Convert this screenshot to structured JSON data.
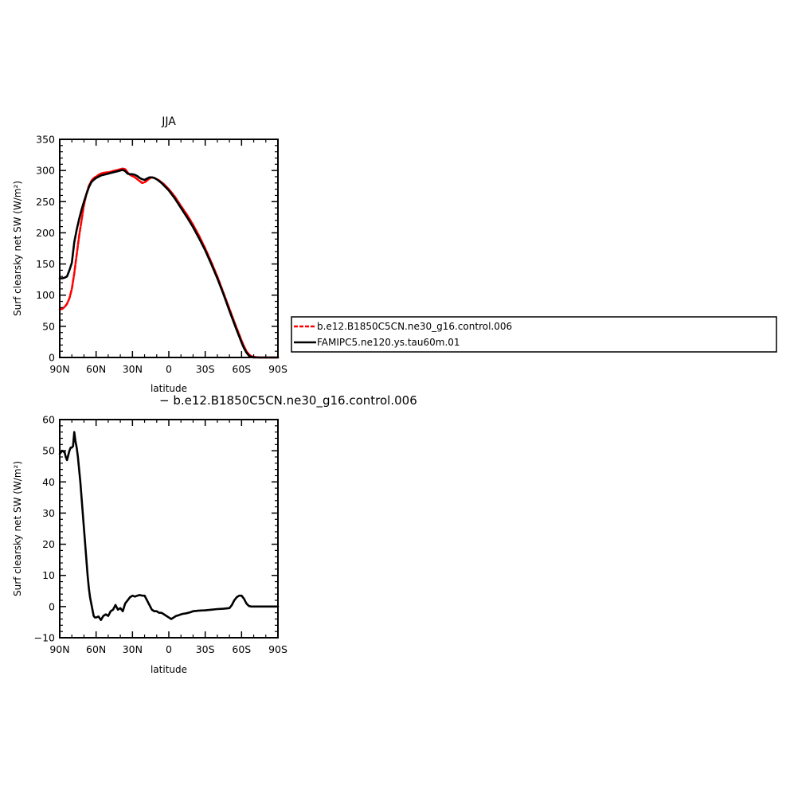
{
  "chart_data": [
    {
      "type": "line",
      "title": "JJA",
      "xlabel": "latitude",
      "ylabel": "Surf clearsky net SW (W/m²)",
      "xlim": [
        90,
        -90
      ],
      "ylim": [
        0,
        350
      ],
      "x_ticks": [
        90,
        60,
        30,
        0,
        -30,
        -60,
        -90
      ],
      "x_tick_labels": [
        "90N",
        "60N",
        "30N",
        "0",
        "30S",
        "60S",
        "90S"
      ],
      "y_ticks": [
        0,
        50,
        100,
        150,
        200,
        250,
        300,
        350
      ],
      "y_tick_labels": [
        "0",
        "50",
        "100",
        "150",
        "200",
        "250",
        "300",
        "350"
      ],
      "grid": false,
      "legend_placement": "right",
      "series": [
        {
          "name": "b.e12.B1850C5CN.ne30_g16.control.006",
          "color": "#ff0000",
          "style": "dashed",
          "x": [
            90,
            88,
            86,
            84,
            82,
            80,
            78,
            76,
            74,
            72,
            70,
            68,
            66,
            64,
            62,
            60,
            58,
            56,
            54,
            52,
            50,
            48,
            46,
            44,
            42,
            40,
            38,
            36,
            34,
            32,
            30,
            28,
            26,
            24,
            22,
            20,
            18,
            16,
            14,
            12,
            10,
            8,
            6,
            4,
            2,
            0,
            -5,
            -10,
            -15,
            -20,
            -25,
            -30,
            -35,
            -40,
            -45,
            -50,
            -55,
            -60,
            -62,
            -64,
            -66,
            -68,
            -70,
            -75,
            -80,
            -85,
            -90
          ],
          "values": [
            77,
            78,
            81,
            86,
            95,
            110,
            135,
            165,
            195,
            220,
            245,
            262,
            275,
            283,
            288,
            290,
            293,
            295,
            296,
            297,
            297,
            298,
            299,
            300,
            301,
            302,
            303,
            302,
            297,
            293,
            291,
            289,
            286,
            283,
            280,
            281,
            284,
            287,
            289,
            288,
            286,
            284,
            281,
            278,
            274,
            270,
            258,
            243,
            229,
            213,
            195,
            175,
            153,
            130,
            104,
            78,
            52,
            27,
            18,
            10,
            5,
            2,
            1,
            0,
            0,
            0,
            0
          ]
        },
        {
          "name": "FAMIPC5.ne120.ys.tau60m.01",
          "color": "#000000",
          "style": "solid",
          "x": [
            90,
            88,
            86,
            84,
            82,
            80,
            78,
            76,
            74,
            72,
            70,
            68,
            66,
            64,
            62,
            60,
            58,
            56,
            54,
            52,
            50,
            48,
            46,
            44,
            42,
            40,
            38,
            36,
            34,
            32,
            30,
            28,
            26,
            24,
            22,
            20,
            18,
            16,
            14,
            12,
            10,
            8,
            6,
            4,
            2,
            0,
            -5,
            -10,
            -15,
            -20,
            -25,
            -30,
            -35,
            -40,
            -45,
            -50,
            -55,
            -60,
            -62,
            -64,
            -66,
            -68,
            -70,
            -75,
            -80,
            -85,
            -90
          ],
          "values": [
            127,
            127,
            128,
            130,
            140,
            152,
            185,
            205,
            222,
            237,
            250,
            262,
            273,
            281,
            285,
            288,
            290,
            292,
            293,
            294,
            295,
            296,
            297,
            298,
            299,
            300,
            301,
            299,
            295,
            294,
            294,
            293,
            291,
            288,
            286,
            285,
            287,
            289,
            289,
            288,
            286,
            283,
            280,
            276,
            272,
            268,
            255,
            240,
            225,
            209,
            191,
            172,
            150,
            127,
            102,
            75,
            49,
            24,
            15,
            8,
            3,
            1,
            0,
            0,
            0,
            0,
            0
          ]
        }
      ]
    },
    {
      "type": "line",
      "title": "− b.e12.B1850C5CN.ne30_g16.control.006",
      "xlabel": "latitude",
      "ylabel": "Surf clearsky net SW (W/m²)",
      "xlim": [
        90,
        -90
      ],
      "ylim": [
        -10,
        60
      ],
      "x_ticks": [
        90,
        60,
        30,
        0,
        -30,
        -60,
        -90
      ],
      "x_tick_labels": [
        "90N",
        "60N",
        "30N",
        "0",
        "30S",
        "60S",
        "90S"
      ],
      "y_ticks": [
        -10,
        0,
        10,
        20,
        30,
        40,
        50,
        60
      ],
      "y_tick_labels": [
        "−10",
        "0",
        "10",
        "20",
        "30",
        "40",
        "50",
        "60"
      ],
      "grid": false,
      "series": [
        {
          "color": "#000000",
          "style": "solid",
          "x": [
            90,
            88,
            86,
            85,
            84,
            83,
            82,
            81,
            80,
            79,
            78,
            77,
            76,
            75,
            74,
            73,
            72,
            71,
            70,
            69,
            68,
            67,
            66,
            65,
            64,
            63,
            62,
            61,
            60,
            58,
            56,
            54,
            52,
            50,
            48,
            46,
            44,
            42,
            40,
            38,
            36,
            34,
            32,
            30,
            28,
            26,
            24,
            22,
            20,
            18,
            16,
            14,
            12,
            10,
            8,
            6,
            4,
            2,
            0,
            -2,
            -4,
            -6,
            -8,
            -10,
            -12,
            -14,
            -16,
            -18,
            -20,
            -25,
            -30,
            -35,
            -40,
            -45,
            -50,
            -52,
            -54,
            -56,
            -58,
            -60,
            -62,
            -64,
            -66,
            -68,
            -70,
            -75,
            -80,
            -85,
            -90
          ],
          "values": [
            49,
            50,
            49.5,
            48,
            47,
            48.5,
            50,
            51,
            51,
            51.5,
            56,
            53,
            51,
            48,
            44,
            40,
            35,
            30,
            25,
            20,
            15,
            10,
            6,
            3,
            1,
            -1,
            -3,
            -3.5,
            -3.5,
            -3.2,
            -4.3,
            -3,
            -2.5,
            -3,
            -1.5,
            -1,
            0.5,
            -1,
            -0.5,
            -1.5,
            1,
            2,
            3,
            3.5,
            3.2,
            3.5,
            3.7,
            3.5,
            3.5,
            2,
            0.5,
            -1,
            -1.5,
            -1.5,
            -2,
            -2,
            -2.5,
            -3,
            -3.5,
            -4,
            -3.5,
            -3,
            -2.8,
            -2.5,
            -2.3,
            -2.2,
            -2,
            -1.8,
            -1.5,
            -1.3,
            -1.2,
            -1,
            -0.8,
            -0.7,
            -0.5,
            0.5,
            2,
            3,
            3.5,
            3.5,
            2.5,
            1,
            0.2,
            0,
            0,
            0,
            0,
            0,
            0
          ]
        }
      ]
    }
  ]
}
